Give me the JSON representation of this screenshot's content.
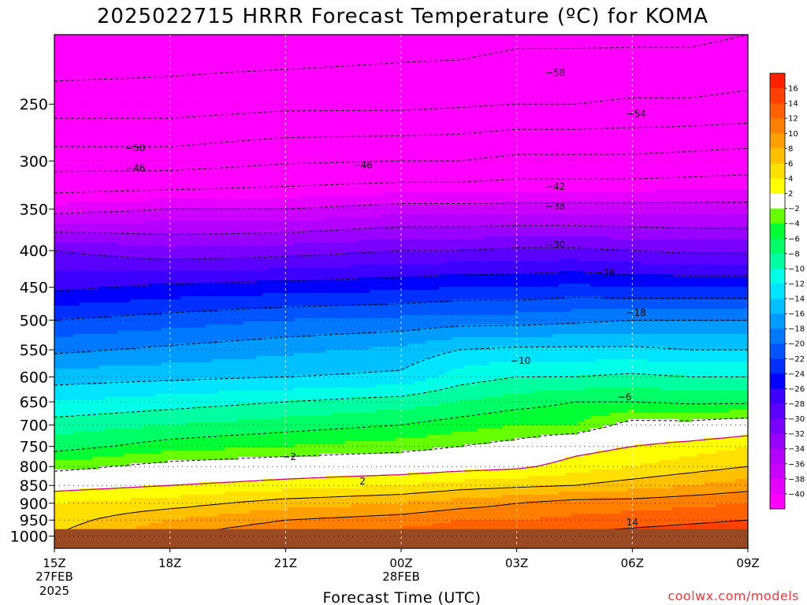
{
  "chart_data": {
    "type": "heatmap",
    "title": "2025022715 HRRR Forecast Temperature (ºC) for KOMA",
    "xlabel": "Forecast Time (UTC)",
    "ylabel": "",
    "x_ticks": [
      "15Z",
      "18Z",
      "21Z",
      "00Z",
      "03Z",
      "06Z",
      "09Z"
    ],
    "x_hours": [
      0,
      3,
      6,
      9,
      12,
      15,
      18
    ],
    "x_date_labels": [
      {
        "hour": 0,
        "lines": [
          "27FEB",
          "2025"
        ]
      },
      {
        "hour": 9,
        "lines": [
          "28FEB"
        ]
      }
    ],
    "y_axis": {
      "scale": "log",
      "range": [
        1040,
        200
      ],
      "ticks": [
        250,
        300,
        350,
        400,
        450,
        500,
        550,
        600,
        650,
        700,
        750,
        800,
        850,
        900,
        950,
        1000
      ],
      "tick_labels": [
        "250",
        "300",
        "350",
        "400",
        "450",
        "500",
        "550",
        "600",
        "650",
        "700",
        "750",
        "800",
        "850",
        "900",
        "950",
        "1000"
      ]
    },
    "grid": {
      "x": "dashed",
      "y": "dotted"
    },
    "ground_below_hPa": 978,
    "profile_hours": [
      0,
      3,
      6,
      9,
      10.5,
      12,
      13.5,
      15,
      16.5,
      18
    ],
    "profile_levels": [
      1000,
      950,
      900,
      850,
      800,
      750,
      700,
      650,
      600,
      550,
      500,
      450,
      400,
      350,
      300,
      250,
      200
    ],
    "profiles": [
      [
        6,
        5,
        4,
        1,
        -3,
        -7,
        -9,
        -12,
        -15,
        -18.5,
        -22,
        -26.5,
        -30,
        -39,
        -48,
        -56,
        -62
      ],
      [
        10,
        8,
        5,
        2,
        -1,
        -5,
        -8,
        -11,
        -14.5,
        -17.5,
        -21,
        -25.5,
        -31.5,
        -38,
        -48,
        -56,
        -61
      ],
      [
        12,
        10,
        7,
        3,
        0,
        -4,
        -7,
        -10,
        -14,
        -16.5,
        -20,
        -25,
        -31,
        -38,
        -46.5,
        -55,
        -61
      ],
      [
        13,
        11,
        8,
        4,
        0.5,
        -3,
        -6,
        -9,
        -13.5,
        -15.5,
        -19.5,
        -24.5,
        -30,
        -37,
        -46,
        -55,
        -60
      ],
      [
        13.5,
        12,
        9,
        5,
        1,
        -2,
        -5,
        -8,
        -11,
        -14,
        -19,
        -24,
        -30,
        -37,
        -46,
        -54.5,
        -60
      ],
      [
        14,
        12,
        10,
        5.5,
        1.5,
        -1,
        -4,
        -7,
        -10,
        -13.5,
        -19,
        -24,
        -29.5,
        -37,
        -45,
        -54,
        -59
      ],
      [
        14.5,
        12.5,
        11,
        6,
        3,
        1,
        -4,
        -6,
        -10,
        -13.5,
        -18.5,
        -23.5,
        -29.5,
        -37,
        -45,
        -54,
        -59
      ],
      [
        15,
        13,
        11,
        7,
        4,
        2,
        -1,
        -6,
        -9.5,
        -13.5,
        -18,
        -24,
        -30,
        -37,
        -45,
        -53.5,
        -59
      ],
      [
        15.5,
        13.5,
        11.5,
        8,
        5,
        3,
        -1,
        -6.5,
        -10,
        -14,
        -18,
        -24,
        -30.5,
        -37,
        -44.5,
        -53.5,
        -59
      ],
      [
        16,
        14,
        12,
        9,
        6,
        4,
        0,
        -6.5,
        -10,
        -14,
        -18,
        -24,
        -30.5,
        -37,
        -44,
        -53,
        -58
      ]
    ],
    "color_levels": [
      -40,
      -38,
      -36,
      -34,
      -32,
      -30,
      -28,
      -26,
      -24,
      -22,
      -20,
      -18,
      -16,
      -14,
      -12,
      -10,
      -8,
      -6,
      -4,
      -2,
      2,
      4,
      6,
      8,
      10,
      12,
      14,
      16
    ],
    "colors": [
      "#ff00ff",
      "#e600ff",
      "#cc00ff",
      "#b300ff",
      "#9900ff",
      "#7a00ff",
      "#5a00ff",
      "#3c00ff",
      "#0000ff",
      "#0030ff",
      "#0055ff",
      "#0078ff",
      "#009bff",
      "#00c0ff",
      "#00e4ff",
      "#00ffe6",
      "#00ffa0",
      "#00ff66",
      "#00ff33",
      "#66ff00",
      "#ffffff",
      "#ffff00",
      "#ffe000",
      "#ffc000",
      "#ffa000",
      "#ff8000",
      "#ff6000",
      "#ff4000",
      "#ff2000"
    ],
    "colorbar_labels": [
      "16",
      "14",
      "12",
      "10",
      "8",
      "6",
      "4",
      "2",
      "−2",
      "−4",
      "−6",
      "−8",
      "−10",
      "−12",
      "−14",
      "−16",
      "−18",
      "−20",
      "−22",
      "−24",
      "−26",
      "−28",
      "−30",
      "−32",
      "−34",
      "−36",
      "−38",
      "−40"
    ],
    "contour_labels": [
      {
        "text": "−58",
        "hour": 13,
        "hPa": 226
      },
      {
        "text": "−54",
        "hour": 15.1,
        "hPa": 258
      },
      {
        "text": "−50",
        "hour": 2.1,
        "hPa": 288
      },
      {
        "text": "−46",
        "hour": 2.1,
        "hPa": 307
      },
      {
        "text": "−46",
        "hour": 8,
        "hPa": 304
      },
      {
        "text": "−42",
        "hour": 13,
        "hPa": 326
      },
      {
        "text": "−38",
        "hour": 13,
        "hPa": 347
      },
      {
        "text": "−30",
        "hour": 13,
        "hPa": 393
      },
      {
        "text": "−26",
        "hour": 14.3,
        "hPa": 430
      },
      {
        "text": "−18",
        "hour": 15.1,
        "hPa": 488
      },
      {
        "text": "−10",
        "hour": 12.1,
        "hPa": 570
      },
      {
        "text": "−6",
        "hour": 14.8,
        "hPa": 640
      },
      {
        "text": "−2",
        "hour": 6.1,
        "hPa": 776
      },
      {
        "text": "2",
        "hour": 8,
        "hPa": 839
      },
      {
        "text": "14",
        "hour": 15,
        "hPa": 957
      }
    ]
  },
  "footer": {
    "credit": "coolwx.com/models"
  }
}
